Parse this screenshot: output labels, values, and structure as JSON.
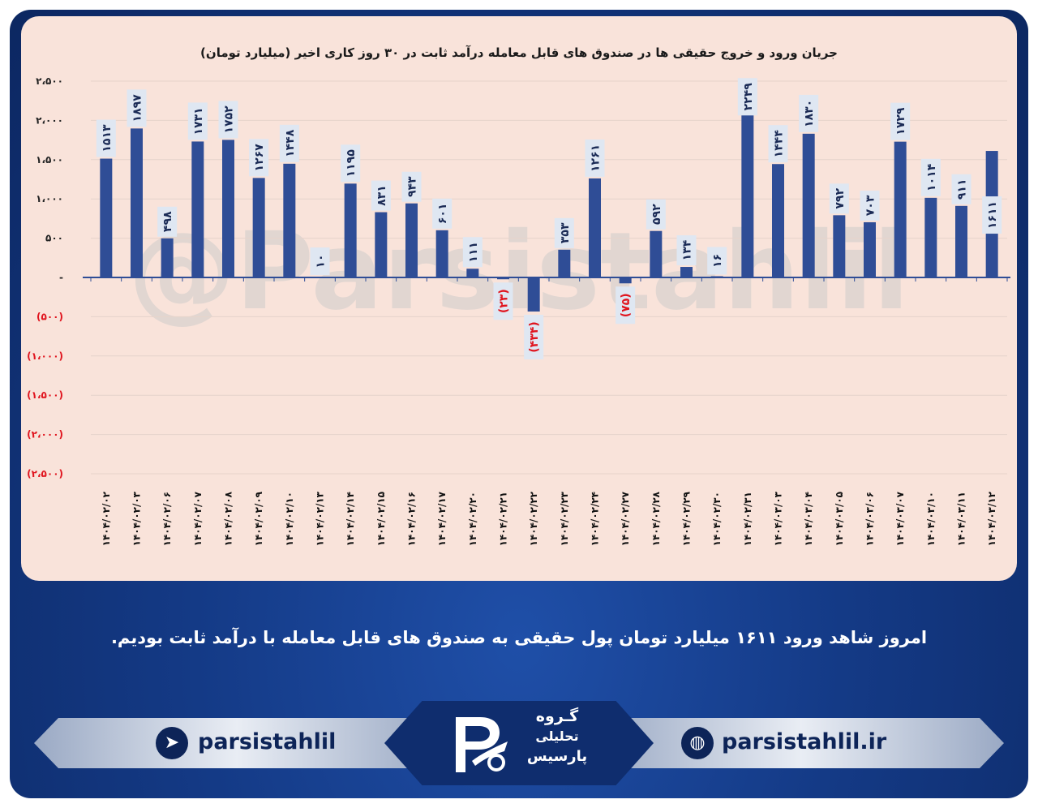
{
  "chart_data": {
    "type": "bar",
    "title": "جریان ورود و خروج حقیقی ها در صندوق های قابل معامله درآمد ثابت در ۳۰ روز کاری اخیر (میلیارد تومان)",
    "categories": [
      "۱۴۰۴/۰۲/۰۲",
      "۱۴۰۴/۰۲/۰۳",
      "۱۴۰۴/۰۲/۰۶",
      "۱۴۰۴/۰۲/۰۷",
      "۱۴۰۴/۰۲/۰۸",
      "۱۴۰۴/۰۲/۰۹",
      "۱۴۰۴/۰۲/۱۰",
      "۱۴۰۴/۰۲/۱۳",
      "۱۴۰۴/۰۲/۱۴",
      "۱۴۰۴/۰۲/۱۵",
      "۱۴۰۴/۰۲/۱۶",
      "۱۴۰۴/۰۲/۱۷",
      "۱۴۰۴/۰۲/۲۰",
      "۱۴۰۴/۰۲/۲۱",
      "۱۴۰۴/۰۲/۲۲",
      "۱۴۰۴/۰۲/۲۳",
      "۱۴۰۴/۰۲/۲۴",
      "۱۴۰۴/۰۲/۲۷",
      "۱۴۰۴/۰۲/۲۸",
      "۱۴۰۴/۰۲/۲۹",
      "۱۴۰۴/۰۲/۳۰",
      "۱۴۰۴/۰۲/۳۱",
      "۱۴۰۴/۰۳/۰۳",
      "۱۴۰۴/۰۳/۰۴",
      "۱۴۰۴/۰۳/۰۵",
      "۱۴۰۴/۰۳/۰۶",
      "۱۴۰۴/۰۳/۰۷",
      "۱۴۰۴/۰۳/۱۰",
      "۱۴۰۴/۰۳/۱۱",
      "۱۴۰۴/۰۳/۱۲"
    ],
    "values": [
      1513,
      1897,
      498,
      1731,
      1752,
      1267,
      1448,
      10,
      1195,
      831,
      943,
      601,
      111,
      -23,
      -434,
      353,
      1261,
      -75,
      592,
      134,
      16,
      2249,
      1444,
      1830,
      792,
      703,
      1729,
      1014,
      911,
      1611
    ],
    "value_labels": [
      "۱۵۱۳",
      "۱۸۹۷",
      "۴۹۸",
      "۱۷۳۱",
      "۱۷۵۲",
      "۱۲۶۷",
      "۱۴۴۸",
      "۱۰",
      "۱۱۹۵",
      "۸۳۱",
      "۹۴۳",
      "۶۰۱",
      "۱۱۱",
      "(۲۳)",
      "(۴۳۴)",
      "۳۵۳",
      "۱۲۶۱",
      "(۷۵)",
      "۵۹۲",
      "۱۳۴",
      "۱۶",
      "۲۲۴۹",
      "۱۴۴۴",
      "۱۸۳۰",
      "۷۹۲",
      "۷۰۳",
      "۱۷۲۹",
      "۱۰۱۴",
      "۹۱۱",
      "۱۶۱۱"
    ],
    "ylim": [
      -2500,
      2500
    ],
    "yticks": [
      2500,
      2000,
      1500,
      1000,
      500,
      0,
      -500,
      -1000,
      -1500,
      -2000,
      -2500
    ],
    "ytick_labels": [
      "۲،۵۰۰",
      "۲،۰۰۰",
      "۱،۵۰۰",
      "۱،۰۰۰",
      "۵۰۰",
      "-",
      "(۵۰۰)",
      "(۱،۰۰۰)",
      "(۱،۵۰۰)",
      "(۲،۰۰۰)",
      "(۲،۵۰۰)"
    ],
    "grid": true,
    "colors": {
      "bar": "#2f4d96",
      "positive_label": "#1a2a55",
      "negative_label": "#e0141e",
      "label_box": "#dfe7f2",
      "grid": "#e6d3cb"
    }
  },
  "watermark": "@Parsistahlil",
  "message": "امروز شاهد ورود ۱۶۱۱ میلیارد تومان پول حقیقی به صندوق های قابل معامله با درآمد ثابت بودیم.",
  "footer": {
    "telegram": "parsistahlil",
    "website": "parsistahlil.ir",
    "logo_line1": "گـروه",
    "logo_line2": "تحلیلی",
    "logo_line3": "پارسیس"
  }
}
